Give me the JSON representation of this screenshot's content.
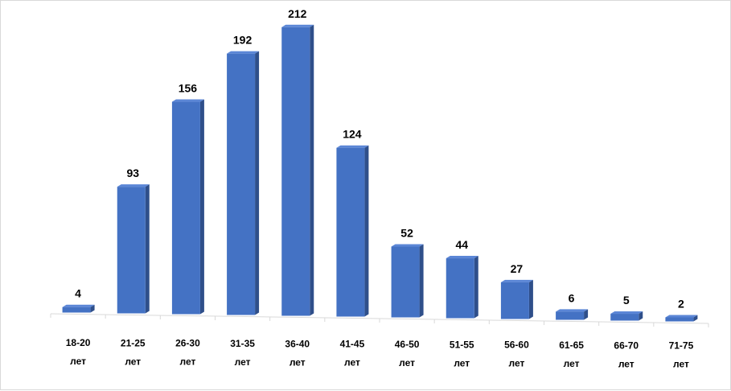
{
  "chart_data": {
    "type": "bar",
    "categories": [
      [
        "18-20",
        "лет"
      ],
      [
        "21-25",
        "лет"
      ],
      [
        "26-30",
        "лет"
      ],
      [
        "31-35",
        "лет"
      ],
      [
        "36-40",
        "лет"
      ],
      [
        "41-45",
        "лет"
      ],
      [
        "46-50",
        "лет"
      ],
      [
        "51-55",
        "лет"
      ],
      [
        "56-60",
        "лет"
      ],
      [
        "61-65",
        "лет"
      ],
      [
        "66-70",
        "лет"
      ],
      [
        "71-75",
        "лет"
      ]
    ],
    "values": [
      4,
      93,
      156,
      192,
      212,
      124,
      52,
      44,
      27,
      6,
      5,
      2
    ],
    "data_labels": true,
    "title": "",
    "xlabel": "",
    "ylabel": "",
    "ylim": [
      0,
      212
    ],
    "grid": false,
    "legend": "none",
    "style": "3d-column",
    "colors": {
      "bar_front": "#4472c4",
      "bar_side": "#2f4f8a",
      "bar_top": "#5b86d6",
      "axis": "#d9d9d9"
    }
  }
}
